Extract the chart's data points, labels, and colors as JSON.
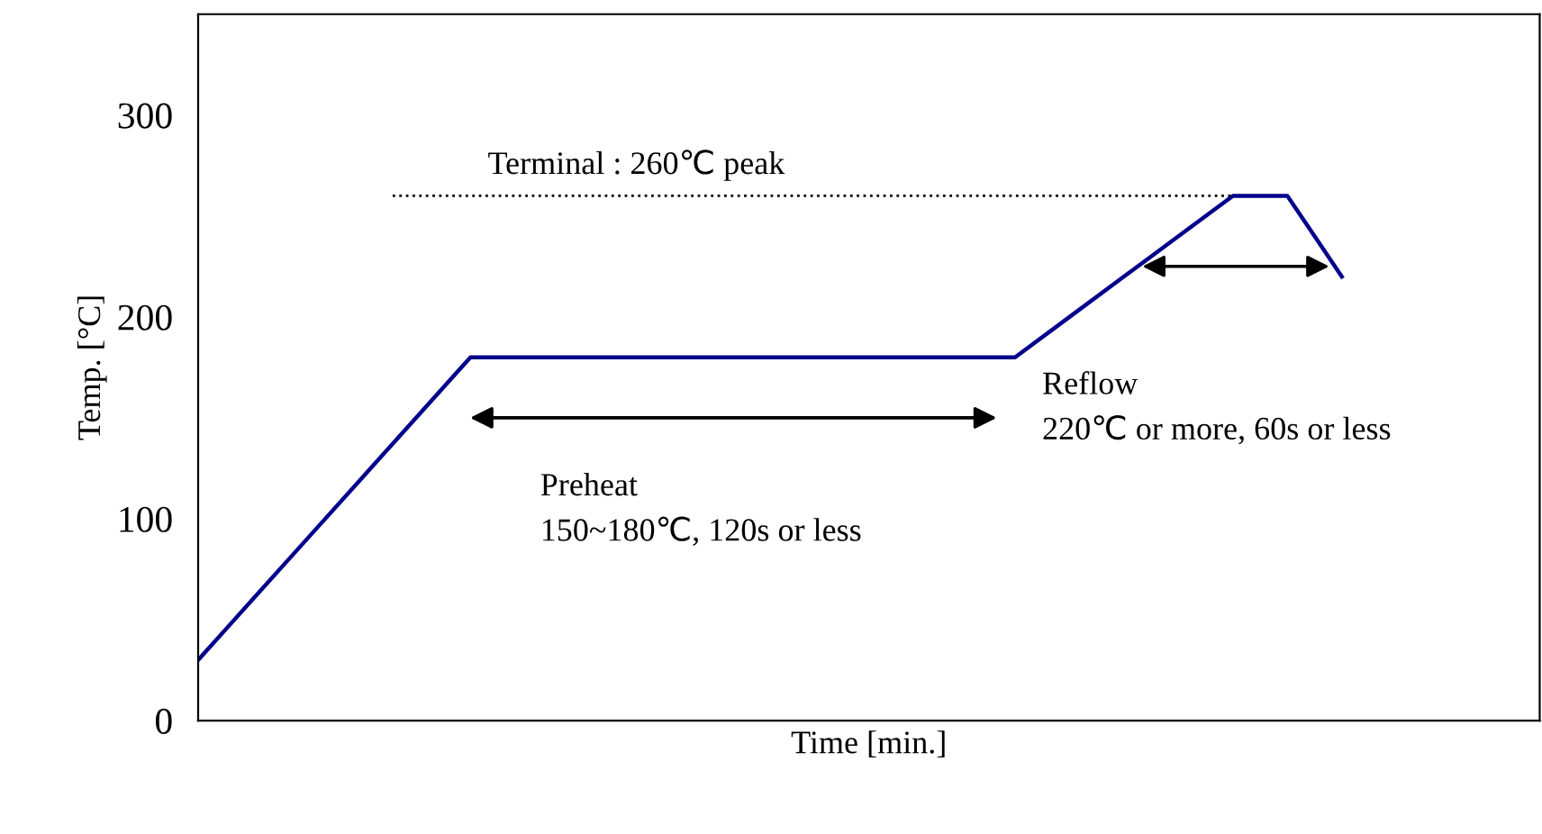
{
  "chart_data": {
    "type": "line",
    "xlabel": "Time [min.]",
    "ylabel": "Temp. [°C]",
    "categories": [
      null,
      null,
      null,
      null,
      null,
      null,
      null,
      null,
      null,
      null,
      null,
      null,
      null,
      null,
      null,
      null,
      null,
      null,
      null,
      null,
      null,
      null
    ],
    "series": [
      {
        "color": "#00008b",
        "values": [
          30,
          60,
          90,
          120,
          150,
          180,
          180,
          180,
          180,
          180,
          180,
          180,
          180,
          180,
          180,
          180,
          200,
          220,
          240,
          260,
          260,
          220
        ]
      }
    ],
    "ylim": [
      0,
      350
    ],
    "yticks": [
      0,
      100,
      200,
      300
    ],
    "tick_labels": "y",
    "grid": false,
    "legend": false,
    "marker": "none",
    "line_style": "solid",
    "ref_lines": [
      {
        "axis": "y",
        "value": 260,
        "label": "Terminal : 260℃ peak",
        "line_style": "dotted",
        "color": "#000000"
      }
    ],
    "annotations": [
      "Preheat\n150~180℃, 120s or less",
      "Reflow\n220℃ or more, 60s or less"
    ]
  }
}
